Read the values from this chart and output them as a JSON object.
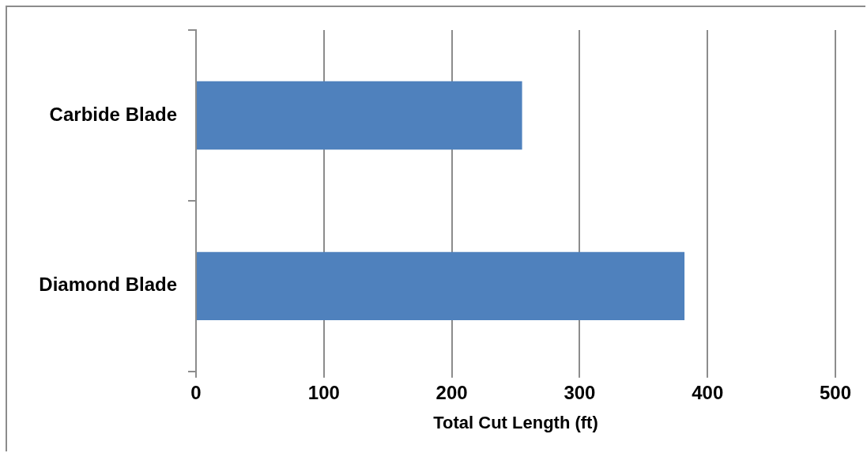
{
  "chart_data": {
    "type": "bar",
    "orientation": "horizontal",
    "categories": [
      "Carbide Blade",
      "Diamond Blade"
    ],
    "values": [
      255,
      382
    ],
    "color": "#4f81bd",
    "xlim": [
      0,
      500
    ],
    "xticks": [
      0,
      100,
      200,
      300,
      400,
      500
    ],
    "xlabel": "Total Cut Length (ft)",
    "grid": "x"
  }
}
